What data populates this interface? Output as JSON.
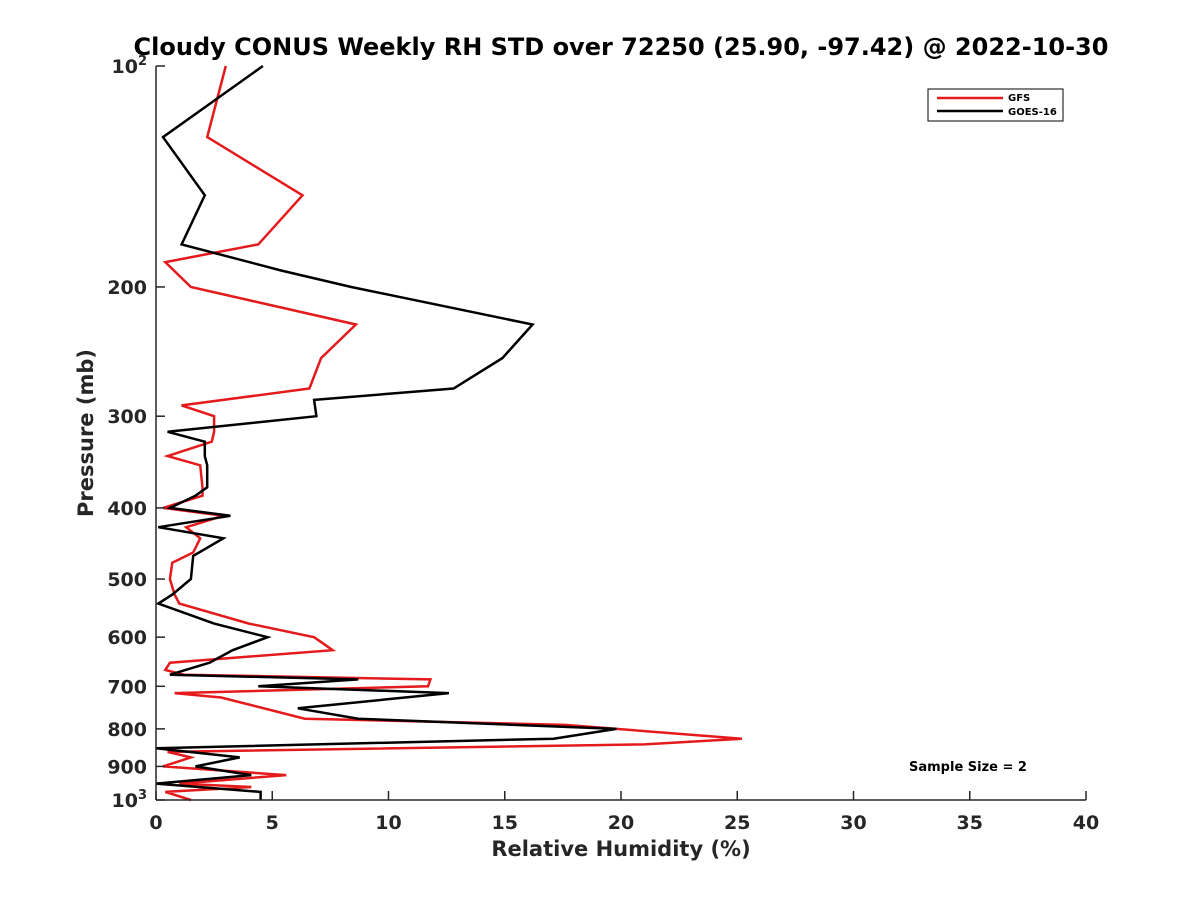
{
  "chart_data": {
    "type": "line",
    "title": "Cloudy CONUS Weekly RH STD over 72250 (25.90, -97.42) @ 2022-10-30",
    "xlabel": "Relative Humidity (%)",
    "ylabel": "Pressure (mb)",
    "xlim": [
      0,
      40
    ],
    "ylim": [
      100,
      1000
    ],
    "y_scale": "log",
    "y_reversed": true,
    "x_ticks": [
      "0",
      "5",
      "10",
      "15",
      "20",
      "25",
      "30",
      "35",
      "40"
    ],
    "y_ticks": [
      {
        "value": 100,
        "base": "10",
        "exp": "2"
      },
      {
        "value": 200,
        "label": "200"
      },
      {
        "value": 300,
        "label": "300"
      },
      {
        "value": 400,
        "label": "400"
      },
      {
        "value": 500,
        "label": "500"
      },
      {
        "value": 600,
        "label": "600"
      },
      {
        "value": 700,
        "label": "700"
      },
      {
        "value": 800,
        "label": "800"
      },
      {
        "value": 900,
        "label": "900"
      },
      {
        "value": 1000,
        "base": "10",
        "exp": "3"
      }
    ],
    "grid": false,
    "legend_position": "top-right",
    "annotation": "Sample Size = 2",
    "series": [
      {
        "name": "GFS",
        "color": "#e41a1c",
        "points": [
          [
            3.0,
            100
          ],
          [
            2.2,
            125
          ],
          [
            6.3,
            150
          ],
          [
            4.4,
            175
          ],
          [
            0.4,
            185
          ],
          [
            1.5,
            200
          ],
          [
            8.6,
            225
          ],
          [
            7.1,
            250
          ],
          [
            6.6,
            275
          ],
          [
            1.1,
            290
          ],
          [
            2.5,
            300
          ],
          [
            2.5,
            315
          ],
          [
            2.4,
            325
          ],
          [
            0.5,
            340
          ],
          [
            1.9,
            350
          ],
          [
            2.0,
            375
          ],
          [
            2.0,
            385
          ],
          [
            0.3,
            400
          ],
          [
            2.9,
            410
          ],
          [
            1.3,
            425
          ],
          [
            1.9,
            440
          ],
          [
            1.6,
            460
          ],
          [
            0.7,
            475
          ],
          [
            0.6,
            500
          ],
          [
            0.8,
            525
          ],
          [
            1.0,
            540
          ],
          [
            4.0,
            575
          ],
          [
            6.8,
            600
          ],
          [
            7.6,
            625
          ],
          [
            0.6,
            650
          ],
          [
            0.4,
            665
          ],
          [
            1.2,
            675
          ],
          [
            11.8,
            685
          ],
          [
            11.7,
            700
          ],
          [
            0.8,
            715
          ],
          [
            2.8,
            725
          ],
          [
            6.4,
            775
          ],
          [
            17.6,
            790
          ],
          [
            25.2,
            825
          ],
          [
            21.0,
            840
          ],
          [
            0.5,
            860
          ],
          [
            1.5,
            875
          ],
          [
            0.3,
            900
          ],
          [
            5.6,
            925
          ],
          [
            1.0,
            950
          ],
          [
            4.1,
            960
          ],
          [
            0.4,
            975
          ],
          [
            1.5,
            1000
          ]
        ]
      },
      {
        "name": "GOES-16",
        "color": "#000000",
        "points": [
          [
            4.6,
            100
          ],
          [
            0.3,
            125
          ],
          [
            2.1,
            150
          ],
          [
            1.1,
            175
          ],
          [
            5.4,
            190
          ],
          [
            8.4,
            200
          ],
          [
            16.2,
            225
          ],
          [
            14.9,
            250
          ],
          [
            12.8,
            275
          ],
          [
            6.8,
            285
          ],
          [
            6.9,
            300
          ],
          [
            0.5,
            315
          ],
          [
            2.1,
            325
          ],
          [
            2.1,
            340
          ],
          [
            2.2,
            350
          ],
          [
            2.2,
            375
          ],
          [
            1.7,
            385
          ],
          [
            0.6,
            400
          ],
          [
            3.2,
            410
          ],
          [
            0.1,
            425
          ],
          [
            2.9,
            440
          ],
          [
            1.6,
            465
          ],
          [
            1.5,
            500
          ],
          [
            0.7,
            525
          ],
          [
            0.1,
            540
          ],
          [
            2.5,
            575
          ],
          [
            4.8,
            600
          ],
          [
            3.3,
            625
          ],
          [
            2.3,
            650
          ],
          [
            0.6,
            675
          ],
          [
            8.7,
            685
          ],
          [
            4.4,
            700
          ],
          [
            12.6,
            715
          ],
          [
            6.1,
            750
          ],
          [
            8.7,
            775
          ],
          [
            19.8,
            800
          ],
          [
            17.1,
            825
          ],
          [
            0.0,
            850
          ],
          [
            3.6,
            875
          ],
          [
            1.7,
            900
          ],
          [
            4.1,
            925
          ],
          [
            0.0,
            950
          ],
          [
            4.5,
            975
          ],
          [
            4.5,
            1000
          ]
        ]
      }
    ]
  }
}
